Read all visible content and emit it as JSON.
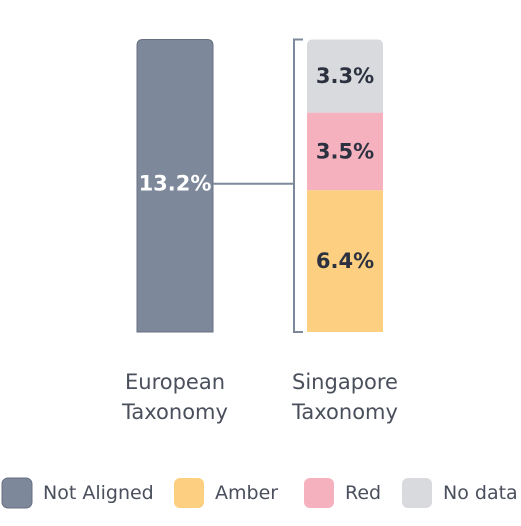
{
  "chart_data": {
    "type": "bar",
    "stacked": true,
    "categories": [
      "European Taxonomy",
      "Singapore Taxonomy"
    ],
    "category_label_lines": [
      [
        "European",
        "Taxonomy"
      ],
      [
        "Singapore",
        "Taxonomy"
      ]
    ],
    "series": [
      {
        "name": "Not Aligned",
        "values": [
          13.2,
          0
        ],
        "labels": [
          "13.2%",
          ""
        ],
        "color": "#7d889b",
        "label_color": "#ffffff"
      },
      {
        "name": "Amber",
        "values": [
          0,
          6.4
        ],
        "labels": [
          "",
          "6.4%"
        ],
        "color": "#fdd081",
        "label_color": "#2c3140"
      },
      {
        "name": "Red",
        "values": [
          0,
          3.5
        ],
        "labels": [
          "",
          "3.5%"
        ],
        "color": "#f6b1bf",
        "label_color": "#2c3140"
      },
      {
        "name": "No data",
        "values": [
          0,
          3.3
        ],
        "labels": [
          "",
          "3.3%"
        ],
        "color": "#d8dade",
        "label_color": "#2c3140"
      }
    ],
    "connector": {
      "from": "European Taxonomy",
      "to": "Singapore Taxonomy",
      "style": "bracket",
      "color": "#7d889b"
    },
    "legend_position": "bottom",
    "text_color": "#2c3140",
    "legend_text_color": "#4a4f5c",
    "axes_visible": false,
    "grid": false
  }
}
